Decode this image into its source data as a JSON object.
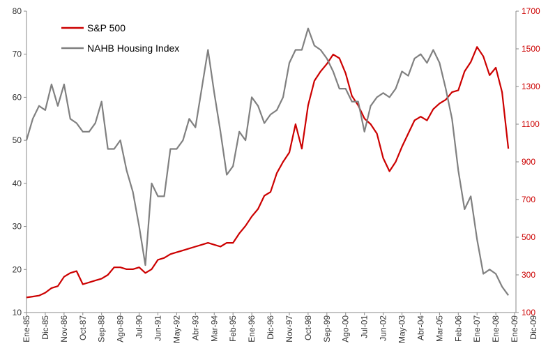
{
  "chart_data": {
    "type": "line",
    "categories": [
      "Ene-85",
      null,
      null,
      "Dic-85",
      null,
      null,
      "Nov-86",
      null,
      null,
      "Oct-87",
      null,
      null,
      "Sep-88",
      null,
      null,
      "Ago-89",
      null,
      null,
      "Jul-90",
      null,
      null,
      "Jun-91",
      null,
      null,
      "May-92",
      null,
      null,
      "Abr-93",
      null,
      null,
      "Mar-94",
      null,
      null,
      "Feb-95",
      null,
      null,
      "Ene-96",
      null,
      null,
      "Dic-96",
      null,
      null,
      "Nov-97",
      null,
      null,
      "Oct-98",
      null,
      null,
      "Sep-99",
      null,
      null,
      "Ago-00",
      null,
      null,
      "Jul-01",
      null,
      null,
      "Jun-02",
      null,
      null,
      "May-03",
      null,
      null,
      "Abr-04",
      null,
      null,
      "Mar-05",
      null,
      null,
      "Feb-06",
      null,
      null,
      "Ene-07",
      null,
      null,
      "Ene-08",
      null,
      null,
      "Ene-09",
      null,
      null,
      "Dic-09"
    ],
    "series": [
      {
        "name": "S&P 500",
        "color": "#cc0000",
        "axis": "y2",
        "values": [
          180,
          185,
          190,
          205,
          230,
          240,
          290,
          310,
          320,
          250,
          260,
          270,
          280,
          300,
          340,
          340,
          330,
          330,
          340,
          310,
          330,
          380,
          390,
          410,
          420,
          430,
          440,
          450,
          460,
          470,
          460,
          450,
          470,
          470,
          520,
          560,
          610,
          650,
          720,
          740,
          840,
          900,
          950,
          1100,
          970,
          1200,
          1330,
          1380,
          1420,
          1470,
          1450,
          1370,
          1250,
          1200,
          1130,
          1100,
          1050,
          920,
          850,
          900,
          980,
          1050,
          1120,
          1140,
          1120,
          1180,
          1210,
          1230,
          1270,
          1280,
          1380,
          1430,
          1510,
          1460,
          1360,
          1400,
          1270,
          970,
          null,
          null,
          null,
          null
        ]
      },
      {
        "name": "NAHB Housing Index",
        "color": "#808080",
        "values": [
          50,
          55,
          58,
          57,
          63,
          58,
          63,
          55,
          54,
          52,
          52,
          54,
          59,
          48,
          48,
          50,
          43,
          38,
          30,
          21,
          40,
          37,
          37,
          48,
          48,
          50,
          55,
          53,
          62,
          71,
          61,
          52,
          42,
          44,
          52,
          50,
          60,
          58,
          54,
          56,
          57,
          60,
          68,
          71,
          71,
          76,
          72,
          71,
          69,
          66,
          62,
          62,
          59,
          59,
          52,
          58,
          60,
          61,
          60,
          62,
          66,
          65,
          69,
          70,
          68,
          71,
          68,
          62,
          55,
          43,
          34,
          37,
          27,
          19,
          20,
          19,
          16,
          14,
          null,
          null,
          null,
          null
        ]
      }
    ],
    "ylim": [
      10,
      80
    ],
    "yticks": [
      10,
      20,
      30,
      40,
      50,
      60,
      70,
      80
    ],
    "y2lim": [
      100,
      1700
    ],
    "y2ticks": [
      100,
      300,
      500,
      700,
      900,
      1100,
      1300,
      1500,
      1700
    ],
    "y2color": "#cc0000",
    "legend": "top-left"
  }
}
